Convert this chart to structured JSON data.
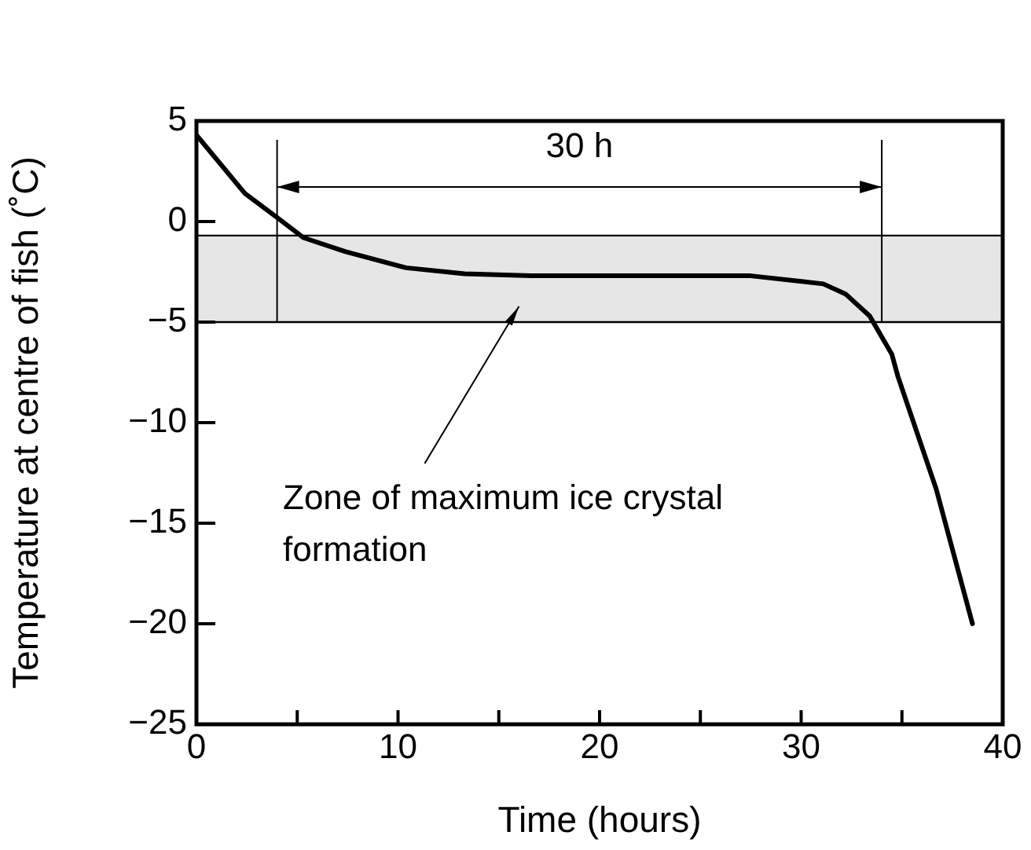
{
  "chart_data": {
    "type": "line",
    "xlabel": "Time (hours)",
    "ylabel": "Temperature at centre of fish (˚C)",
    "x": [
      0,
      2.4,
      4.0,
      5.3,
      7.4,
      10.4,
      13.3,
      16.6,
      21.6,
      27.5,
      31.1,
      32.2,
      33.4,
      34.5,
      34.8,
      36.7,
      38.5
    ],
    "series": [
      {
        "color": "#000000",
        "values": [
          4.3,
          1.4,
          0.2,
          -0.8,
          -1.5,
          -2.3,
          -2.6,
          -2.7,
          -2.7,
          -2.7,
          -3.1,
          -3.6,
          -4.7,
          -6.6,
          -7.7,
          -13.3,
          -20
        ]
      }
    ],
    "xlim": [
      0,
      40
    ],
    "ylim": [
      -25,
      5
    ],
    "xticks": [
      0,
      {
        "value": 5,
        "label": null
      },
      10,
      {
        "value": 15,
        "label": null
      },
      20,
      {
        "value": 25,
        "label": null
      },
      30,
      {
        "value": 35,
        "label": null
      },
      40
    ],
    "yticks": [
      5,
      0,
      -5,
      -10,
      -15,
      -20,
      -25
    ],
    "ref_lines": [
      {
        "axis": "x",
        "value": 4
      },
      {
        "axis": "x",
        "value": 34
      }
    ],
    "bands": [
      {
        "axis": "y",
        "from": -0.7,
        "to": -5,
        "color": "#e6e6e6"
      }
    ],
    "annotations": [
      "30 h",
      "Zone of maximum ice crystal formation"
    ],
    "grid": false,
    "legend": false,
    "marker": "none",
    "line_style": "solid"
  }
}
